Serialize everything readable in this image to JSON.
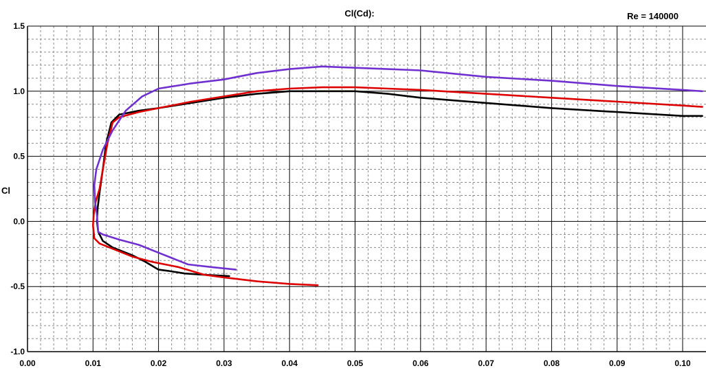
{
  "chart_data": {
    "type": "line",
    "title": "Cl(Cd):",
    "annotation": "Re = 140000",
    "xlabel": "",
    "ylabel": "Cl",
    "xlim": [
      0.0,
      0.1
    ],
    "ylim": [
      -1.0,
      1.5
    ],
    "x_ticks": [
      "0.00",
      "0.01",
      "0.02",
      "0.03",
      "0.04",
      "0.05",
      "0.06",
      "0.07",
      "0.08",
      "0.09",
      "0.10"
    ],
    "y_ticks": [
      "1.5",
      "1.0",
      "0.5",
      "0.0",
      "-0.5",
      "-1.0"
    ],
    "grid": true,
    "legend": "none",
    "series": [
      {
        "color": "#000000",
        "points": [
          [
            0.0308,
            -0.42
          ],
          [
            0.027,
            -0.41
          ],
          [
            0.024,
            -0.4
          ],
          [
            0.0215,
            -0.38
          ],
          [
            0.02,
            -0.37
          ],
          [
            0.018,
            -0.31
          ],
          [
            0.016,
            -0.26
          ],
          [
            0.013,
            -0.2
          ],
          [
            0.0115,
            -0.15
          ],
          [
            0.0108,
            -0.08
          ],
          [
            0.0106,
            0.0
          ],
          [
            0.0107,
            0.1
          ],
          [
            0.011,
            0.22
          ],
          [
            0.0115,
            0.4
          ],
          [
            0.012,
            0.6
          ],
          [
            0.0128,
            0.76
          ],
          [
            0.014,
            0.82
          ],
          [
            0.017,
            0.85
          ],
          [
            0.02,
            0.87
          ],
          [
            0.025,
            0.91
          ],
          [
            0.03,
            0.95
          ],
          [
            0.035,
            0.98
          ],
          [
            0.04,
            1.0
          ],
          [
            0.045,
            1.0
          ],
          [
            0.05,
            1.0
          ],
          [
            0.055,
            0.98
          ],
          [
            0.06,
            0.95
          ],
          [
            0.07,
            0.91
          ],
          [
            0.08,
            0.87
          ],
          [
            0.09,
            0.84
          ],
          [
            0.1,
            0.81
          ],
          [
            0.103,
            0.81
          ]
        ]
      },
      {
        "color": "#dd0000",
        "points": [
          [
            0.0443,
            -0.49
          ],
          [
            0.04,
            -0.48
          ],
          [
            0.035,
            -0.46
          ],
          [
            0.03,
            -0.43
          ],
          [
            0.027,
            -0.41
          ],
          [
            0.023,
            -0.35
          ],
          [
            0.019,
            -0.31
          ],
          [
            0.016,
            -0.27
          ],
          [
            0.013,
            -0.21
          ],
          [
            0.011,
            -0.17
          ],
          [
            0.0102,
            -0.13
          ],
          [
            0.01,
            -0.03
          ],
          [
            0.0101,
            0.05
          ],
          [
            0.0104,
            0.15
          ],
          [
            0.011,
            0.25
          ],
          [
            0.0115,
            0.4
          ],
          [
            0.0122,
            0.6
          ],
          [
            0.013,
            0.76
          ],
          [
            0.014,
            0.8
          ],
          [
            0.017,
            0.84
          ],
          [
            0.02,
            0.87
          ],
          [
            0.025,
            0.92
          ],
          [
            0.03,
            0.96
          ],
          [
            0.035,
            1.0
          ],
          [
            0.04,
            1.02
          ],
          [
            0.045,
            1.03
          ],
          [
            0.05,
            1.03
          ],
          [
            0.055,
            1.02
          ],
          [
            0.06,
            1.01
          ],
          [
            0.07,
            0.98
          ],
          [
            0.08,
            0.95
          ],
          [
            0.09,
            0.92
          ],
          [
            0.1,
            0.89
          ],
          [
            0.103,
            0.88
          ]
        ]
      },
      {
        "color": "#7030d0",
        "points": [
          [
            0.0318,
            -0.37
          ],
          [
            0.028,
            -0.35
          ],
          [
            0.0245,
            -0.33
          ],
          [
            0.022,
            -0.28
          ],
          [
            0.02,
            -0.24
          ],
          [
            0.017,
            -0.18
          ],
          [
            0.014,
            -0.14
          ],
          [
            0.0115,
            -0.1
          ],
          [
            0.0108,
            -0.08
          ],
          [
            0.0107,
            -0.02
          ],
          [
            0.0106,
            0.05
          ],
          [
            0.0103,
            0.15
          ],
          [
            0.0102,
            0.28
          ],
          [
            0.0105,
            0.4
          ],
          [
            0.0115,
            0.55
          ],
          [
            0.013,
            0.7
          ],
          [
            0.015,
            0.85
          ],
          [
            0.0175,
            0.96
          ],
          [
            0.02,
            1.02
          ],
          [
            0.025,
            1.06
          ],
          [
            0.03,
            1.09
          ],
          [
            0.035,
            1.14
          ],
          [
            0.04,
            1.17
          ],
          [
            0.045,
            1.19
          ],
          [
            0.05,
            1.18
          ],
          [
            0.055,
            1.17
          ],
          [
            0.06,
            1.16
          ],
          [
            0.07,
            1.11
          ],
          [
            0.08,
            1.08
          ],
          [
            0.09,
            1.04
          ],
          [
            0.1,
            1.01
          ],
          [
            0.103,
            1.0
          ]
        ]
      }
    ]
  }
}
